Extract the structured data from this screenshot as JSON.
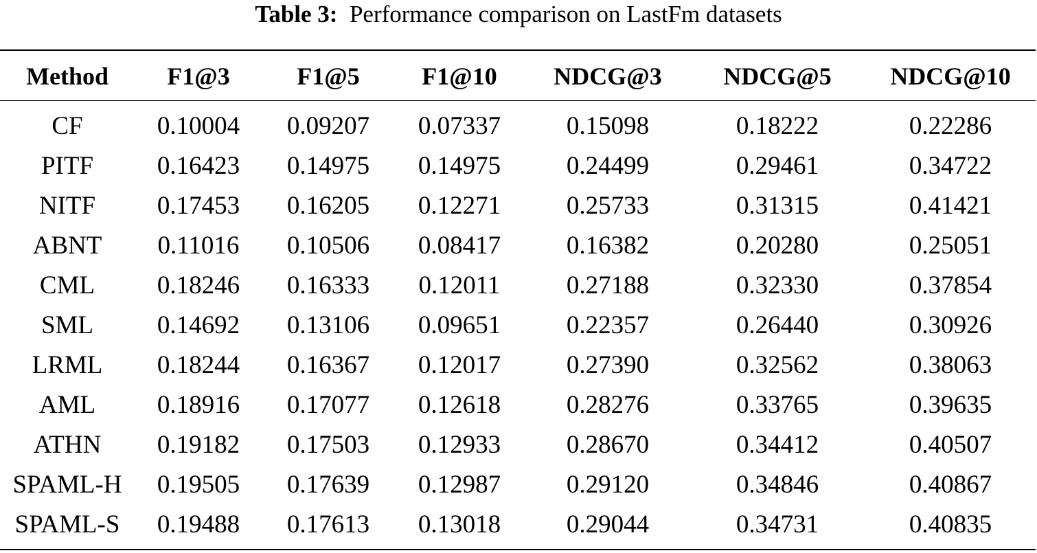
{
  "caption": {
    "label": "Table 3:",
    "text": "Performance comparison on LastFm datasets"
  },
  "table": {
    "columns": [
      "Method",
      "F1@3",
      "F1@5",
      "F1@10",
      "NDCG@3",
      "NDCG@5",
      "NDCG@10"
    ],
    "rows": [
      [
        "CF",
        "0.10004",
        "0.09207",
        "0.07337",
        "0.15098",
        "0.18222",
        "0.22286"
      ],
      [
        "PITF",
        "0.16423",
        "0.14975",
        "0.14975",
        "0.24499",
        "0.29461",
        "0.34722"
      ],
      [
        "NITF",
        "0.17453",
        "0.16205",
        "0.12271",
        "0.25733",
        "0.31315",
        "0.41421"
      ],
      [
        "ABNT",
        "0.11016",
        "0.10506",
        "0.08417",
        "0.16382",
        "0.20280",
        "0.25051"
      ],
      [
        "CML",
        "0.18246",
        "0.16333",
        "0.12011",
        "0.27188",
        "0.32330",
        "0.37854"
      ],
      [
        "SML",
        "0.14692",
        "0.13106",
        "0.09651",
        "0.22357",
        "0.26440",
        "0.30926"
      ],
      [
        "LRML",
        "0.18244",
        "0.16367",
        "0.12017",
        "0.27390",
        "0.32562",
        "0.38063"
      ],
      [
        "AML",
        "0.18916",
        "0.17077",
        "0.12618",
        "0.28276",
        "0.33765",
        "0.39635"
      ],
      [
        "ATHN",
        "0.19182",
        "0.17503",
        "0.12933",
        "0.28670",
        "0.34412",
        "0.40507"
      ],
      [
        "SPAML-H",
        "0.19505",
        "0.17639",
        "0.12987",
        "0.29120",
        "0.34846",
        "0.40867"
      ],
      [
        "SPAML-S",
        "0.19488",
        "0.17613",
        "0.13018",
        "0.29044",
        "0.34731",
        "0.40835"
      ]
    ]
  }
}
